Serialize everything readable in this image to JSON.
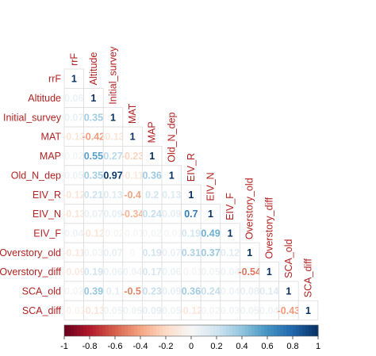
{
  "chart_data": {
    "type": "heatmap",
    "variables": [
      "rrF",
      "Altitude",
      "Initial_survey",
      "MAT",
      "MAP",
      "Old_N_dep",
      "EIV_R",
      "EIV_N",
      "EIV_F",
      "Overstory_old",
      "Overstory_diff",
      "SCA_old",
      "SCA_diff"
    ],
    "matrix": [
      [
        1
      ],
      [
        0.06,
        1
      ],
      [
        0.07,
        0.35,
        1
      ],
      [
        -0.13,
        -0.42,
        -0.13,
        1
      ],
      [
        0.02,
        0.55,
        0.27,
        -0.23,
        1
      ],
      [
        0.05,
        0.35,
        0.97,
        -0.11,
        0.36,
        1
      ],
      [
        -0.12,
        0.21,
        0.13,
        -0.4,
        0.2,
        0.13,
        1
      ],
      [
        -0.13,
        0.07,
        0.09,
        -0.34,
        0.24,
        0.09,
        0.7,
        1
      ],
      [
        0.04,
        -0.12,
        -0.02,
        -0.01,
        0.02,
        -0.01,
        0.19,
        0.49,
        1
      ],
      [
        -0.11,
        0.03,
        0.07,
        0.0,
        0.19,
        0.07,
        0.31,
        0.37,
        0.12,
        1
      ],
      [
        -0.09,
        0.19,
        0.06,
        0.04,
        0.17,
        0.06,
        -0.01,
        0.05,
        0.04,
        -0.54,
        1
      ],
      [
        0.02,
        0.39,
        0.1,
        -0.5,
        0.23,
        0.09,
        0.36,
        0.24,
        0.04,
        0.08,
        0.14,
        1
      ],
      [
        -0.03,
        -0.13,
        0.05,
        0.05,
        0.09,
        0.05,
        -0.12,
        0.02,
        0.03,
        0.05,
        0.04,
        -0.43,
        1
      ]
    ],
    "colorbar": {
      "range": [
        -1,
        1
      ],
      "ticks": [
        "-1",
        "-0.8",
        "-0.6",
        "-0.4",
        "-0.2",
        "0",
        "0.2",
        "0.4",
        "0.6",
        "0.8",
        "1"
      ]
    },
    "colors": {
      "negative_end": "#67001f",
      "positive_end": "#053061",
      "label_color": "#b22222",
      "grid": "#dddddd"
    }
  }
}
